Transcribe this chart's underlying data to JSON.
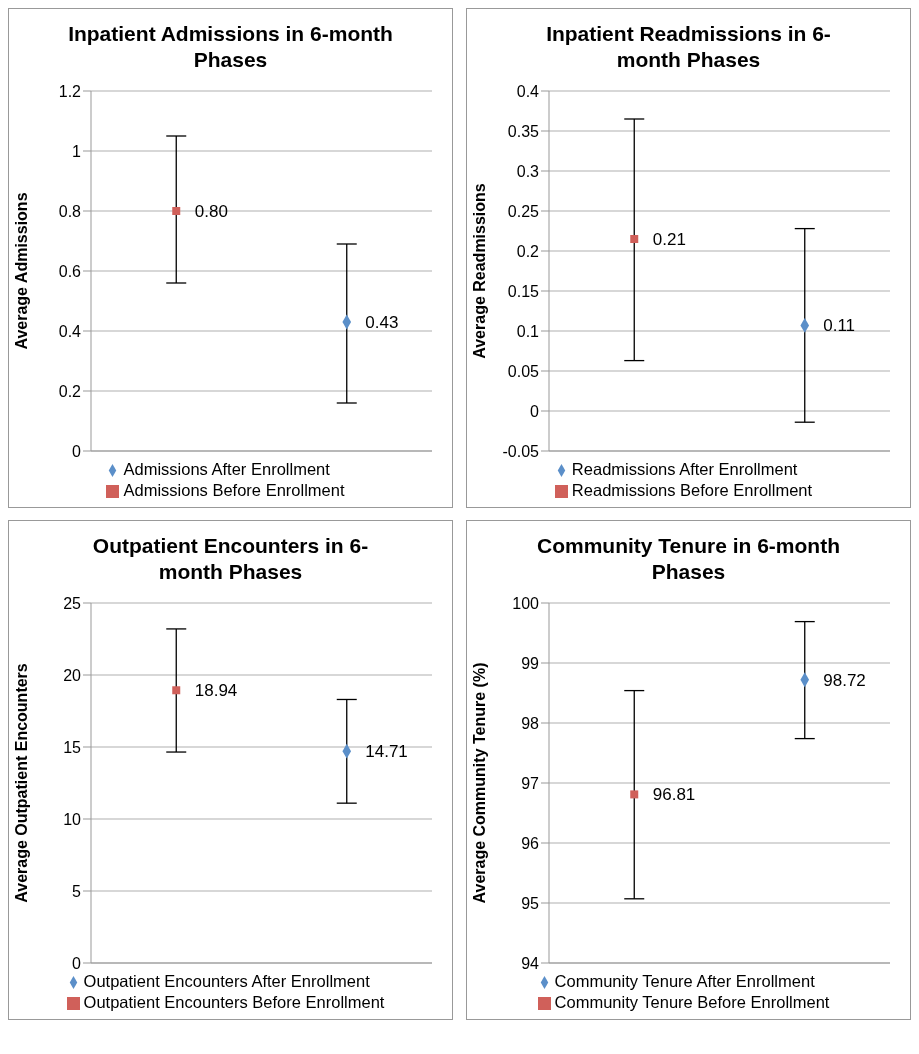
{
  "chart_data": [
    {
      "type": "scatter",
      "title": "Inpatient Admissions in 6-month Phases",
      "ylabel": "Average Admissions",
      "categories": [
        null,
        null
      ],
      "ylim": [
        0,
        1.2
      ],
      "yticks": [
        0,
        0.2,
        0.4,
        0.6,
        0.8,
        1,
        1.2
      ],
      "grid": "y",
      "legend": "bottom",
      "series": [
        {
          "name": "Admissions Before Enrollment",
          "color": "#d0605a",
          "marker": "square",
          "values": [
            0.8,
            null
          ],
          "value_labels": [
            "0.80",
            null
          ],
          "errors": [
            [
              0.56,
              1.05
            ],
            null
          ]
        },
        {
          "name": "Admissions After Enrollment",
          "color": "#5b8fc9",
          "marker": "diamond",
          "values": [
            null,
            0.43
          ],
          "value_labels": [
            null,
            "0.43"
          ],
          "errors": [
            null,
            [
              0.16,
              0.69
            ]
          ]
        }
      ]
    },
    {
      "type": "scatter",
      "title": "Inpatient Readmissions in 6-month Phases",
      "ylabel": "Average Readmissions",
      "categories": [
        null,
        null
      ],
      "ylim": [
        -0.05,
        0.4
      ],
      "yticks": [
        -0.05,
        0,
        0.05,
        0.1,
        0.15,
        0.2,
        0.25,
        0.3,
        0.35,
        0.4
      ],
      "grid": "y",
      "legend": "bottom",
      "series": [
        {
          "name": "Readmissions Before Enrollment",
          "color": "#d0605a",
          "marker": "square",
          "values": [
            0.215,
            null
          ],
          "value_labels": [
            "0.21",
            null
          ],
          "errors": [
            [
              0.063,
              0.365
            ],
            null
          ]
        },
        {
          "name": "Readmissions After Enrollment",
          "color": "#5b8fc9",
          "marker": "diamond",
          "values": [
            null,
            0.107
          ],
          "value_labels": [
            null,
            "0.11"
          ],
          "errors": [
            null,
            [
              -0.014,
              0.228
            ]
          ]
        }
      ]
    },
    {
      "type": "scatter",
      "title": "Outpatient Encounters in 6-month Phases",
      "ylabel": "Average Outpatient Encounters",
      "categories": [
        null,
        null
      ],
      "ylim": [
        0,
        25
      ],
      "yticks": [
        0,
        5,
        10,
        15,
        20,
        25
      ],
      "grid": "y",
      "legend": "bottom",
      "series": [
        {
          "name": "Outpatient Encounters Before Enrollment",
          "color": "#d0605a",
          "marker": "square",
          "values": [
            18.94,
            null
          ],
          "value_labels": [
            "18.94",
            null
          ],
          "errors": [
            [
              14.65,
              23.2
            ],
            null
          ]
        },
        {
          "name": "Outpatient Encounters After Enrollment",
          "color": "#5b8fc9",
          "marker": "diamond",
          "values": [
            null,
            14.71
          ],
          "value_labels": [
            null,
            "14.71"
          ],
          "errors": [
            null,
            [
              11.1,
              18.3
            ]
          ]
        }
      ]
    },
    {
      "type": "scatter",
      "title": "Community Tenure in 6-month Phases",
      "ylabel": "Average Community Tenure (%)",
      "categories": [
        null,
        null
      ],
      "ylim": [
        94,
        100
      ],
      "yticks": [
        94,
        95,
        96,
        97,
        98,
        99,
        100
      ],
      "grid": "y",
      "legend": "bottom",
      "series": [
        {
          "name": "Community Tenure Before Enrollment",
          "color": "#d0605a",
          "marker": "square",
          "values": [
            96.81,
            null
          ],
          "value_labels": [
            "96.81",
            null
          ],
          "errors": [
            [
              95.07,
              98.54
            ],
            null
          ]
        },
        {
          "name": "Community Tenure After Enrollment",
          "color": "#5b8fc9",
          "marker": "diamond",
          "values": [
            null,
            98.72
          ],
          "value_labels": [
            null,
            "98.72"
          ],
          "errors": [
            null,
            [
              97.74,
              99.69
            ]
          ]
        }
      ]
    }
  ]
}
